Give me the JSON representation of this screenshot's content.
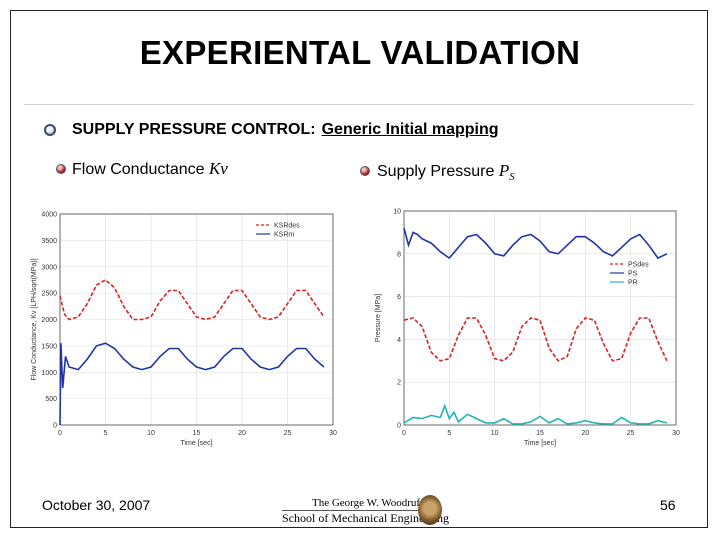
{
  "slide": {
    "title": "EXPERIENTAL VALIDATION",
    "bullet1_label": "SUPPLY PRESSURE CONTROL:",
    "bullet1_sub": "Generic Initial mapping",
    "bullet2_label": "Flow Conductance",
    "bullet2_symbol": "Kv",
    "bullet3_label": "Supply Pressure",
    "bullet3_symbol": "P",
    "bullet3_subscript": "S",
    "footer_date": "October 30, 2007",
    "footer_page": "56",
    "logo_line1": "The George W. Woodruff",
    "logo_line2": "School of Mechanical Engineering"
  },
  "colors": {
    "red": "#dd2222",
    "blue": "#2233aa",
    "cyan": "#22b5b8",
    "grid": "#dddddd"
  },
  "chart_data": [
    {
      "type": "line",
      "ylabel": "Flow Conductance, Kv [LPH/sqrt(MPa)]",
      "xlabel": "Time [sec]",
      "xlim": [
        0,
        30
      ],
      "ylim": [
        0,
        4000
      ],
      "xticks": [
        "0",
        "5",
        "10",
        "15",
        "20",
        "25",
        "30"
      ],
      "yticks": [
        "0",
        "500",
        "1000",
        "1500",
        "2000",
        "2500",
        "3000",
        "3500",
        "4000"
      ],
      "legend_position": "top-right",
      "series": [
        {
          "name": "KSRdes",
          "color": "#dd2222",
          "dashed": true,
          "x": [
            0,
            0.5,
            1,
            2,
            3,
            4,
            5,
            6,
            7,
            8,
            9,
            10,
            11,
            12,
            13,
            14,
            15,
            16,
            17,
            18,
            19,
            20,
            21,
            22,
            23,
            24,
            25,
            26,
            27,
            28,
            29
          ],
          "y": [
            2450,
            2100,
            2000,
            2050,
            2300,
            2650,
            2750,
            2600,
            2250,
            2000,
            2000,
            2050,
            2350,
            2550,
            2550,
            2300,
            2050,
            2000,
            2050,
            2300,
            2550,
            2550,
            2300,
            2050,
            2000,
            2050,
            2300,
            2550,
            2550,
            2300,
            2050
          ]
        },
        {
          "name": "KSRm",
          "color": "#2233aa",
          "dashed": false,
          "x": [
            0,
            0.1,
            0.3,
            0.6,
            1,
            2,
            3,
            4,
            5,
            6,
            7,
            8,
            9,
            10,
            11,
            12,
            13,
            14,
            15,
            16,
            17,
            18,
            19,
            20,
            21,
            22,
            23,
            24,
            25,
            26,
            27,
            28,
            29
          ],
          "y": [
            0,
            1550,
            700,
            1300,
            1100,
            1050,
            1250,
            1500,
            1550,
            1450,
            1250,
            1100,
            1050,
            1100,
            1300,
            1450,
            1450,
            1250,
            1100,
            1050,
            1100,
            1300,
            1450,
            1450,
            1250,
            1100,
            1050,
            1100,
            1300,
            1450,
            1450,
            1250,
            1100
          ]
        }
      ]
    },
    {
      "type": "line",
      "ylabel": "Pressure [MPa]",
      "xlabel": "Time [sec]",
      "xlim": [
        0,
        30
      ],
      "ylim": [
        0,
        10
      ],
      "xticks": [
        "0",
        "5",
        "10",
        "15",
        "20",
        "25",
        "30"
      ],
      "yticks": [
        "0",
        "2",
        "4",
        "6",
        "8",
        "10"
      ],
      "legend_position": "right",
      "series": [
        {
          "name": "PSdes",
          "color": "#dd2222",
          "dashed": true,
          "x": [
            0,
            1,
            2,
            3,
            4,
            5,
            6,
            7,
            8,
            9,
            10,
            11,
            12,
            13,
            14,
            15,
            16,
            17,
            18,
            19,
            20,
            21,
            22,
            23,
            24,
            25,
            26,
            27,
            28,
            29
          ],
          "y": [
            4.9,
            5.0,
            4.6,
            3.4,
            3.0,
            3.1,
            4.2,
            5.0,
            5.0,
            4.2,
            3.1,
            3.0,
            3.4,
            4.6,
            5.0,
            4.9,
            3.6,
            3.0,
            3.2,
            4.5,
            5.0,
            4.9,
            3.8,
            3.0,
            3.1,
            4.3,
            5.0,
            5.0,
            3.9,
            3.0
          ]
        },
        {
          "name": "PS",
          "color": "#2233aa",
          "dashed": false,
          "x": [
            0,
            0.5,
            1,
            1.5,
            2,
            3,
            4,
            5,
            6,
            7,
            8,
            9,
            10,
            11,
            12,
            13,
            14,
            15,
            16,
            17,
            18,
            19,
            20,
            21,
            22,
            23,
            24,
            25,
            26,
            27,
            28,
            29
          ],
          "y": [
            9.2,
            8.4,
            9.0,
            8.9,
            8.7,
            8.5,
            8.1,
            7.8,
            8.3,
            8.8,
            8.9,
            8.5,
            8.0,
            7.9,
            8.4,
            8.8,
            8.9,
            8.6,
            8.1,
            8.0,
            8.4,
            8.8,
            8.8,
            8.5,
            8.1,
            7.9,
            8.3,
            8.7,
            8.9,
            8.4,
            7.8,
            8.0
          ]
        },
        {
          "name": "PR",
          "color": "#22b5b8",
          "dashed": false,
          "x": [
            0,
            1,
            2,
            3,
            4,
            4.5,
            5,
            5.5,
            6,
            7,
            8,
            9,
            10,
            11,
            12,
            13,
            14,
            15,
            16,
            17,
            18,
            19,
            20,
            21,
            22,
            23,
            24,
            25,
            26,
            27,
            28,
            29
          ],
          "y": [
            0.1,
            0.35,
            0.3,
            0.45,
            0.35,
            0.9,
            0.3,
            0.6,
            0.15,
            0.5,
            0.3,
            0.1,
            0.1,
            0.3,
            0.05,
            0.05,
            0.15,
            0.4,
            0.1,
            0.3,
            0.05,
            0.1,
            0.2,
            0.1,
            0.05,
            0.05,
            0.35,
            0.1,
            0.05,
            0.05,
            0.2,
            0.1
          ]
        }
      ]
    }
  ]
}
